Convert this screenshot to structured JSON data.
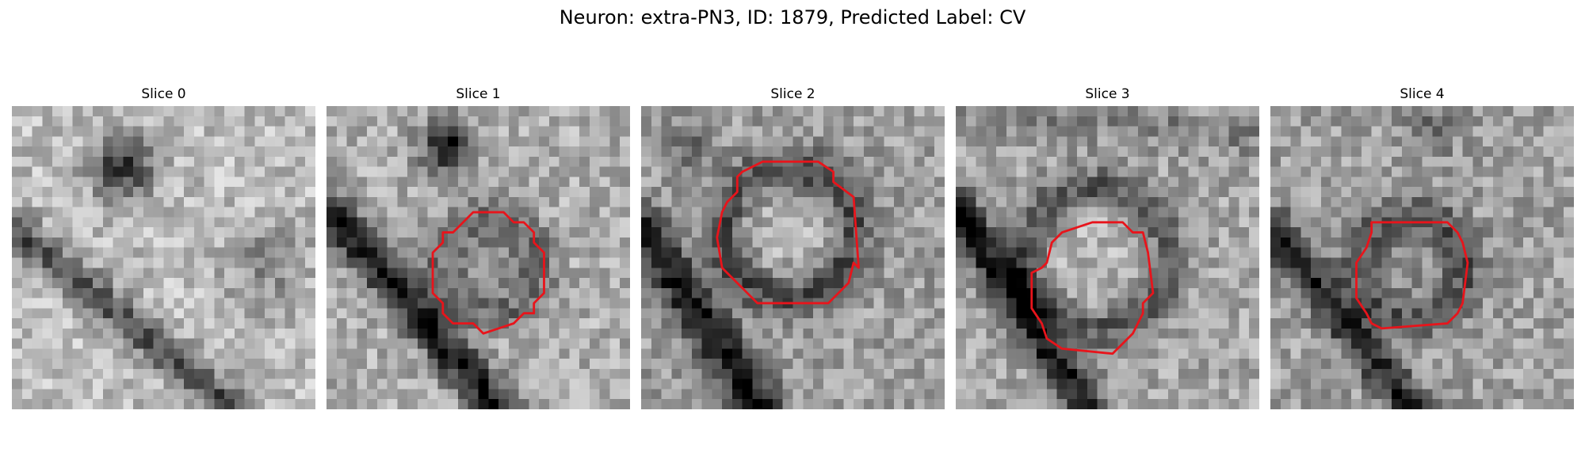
{
  "figure": {
    "title": "Neuron: extra-PN3, ID: 1879, Predicted Label: CV",
    "contour_color": "#e8141b"
  },
  "panels": [
    {
      "title": "Slice 0",
      "has_contour": false
    },
    {
      "title": "Slice 1",
      "has_contour": true
    },
    {
      "title": "Slice 2",
      "has_contour": true
    },
    {
      "title": "Slice 3",
      "has_contour": true
    },
    {
      "title": "Slice 4",
      "has_contour": true
    }
  ]
}
